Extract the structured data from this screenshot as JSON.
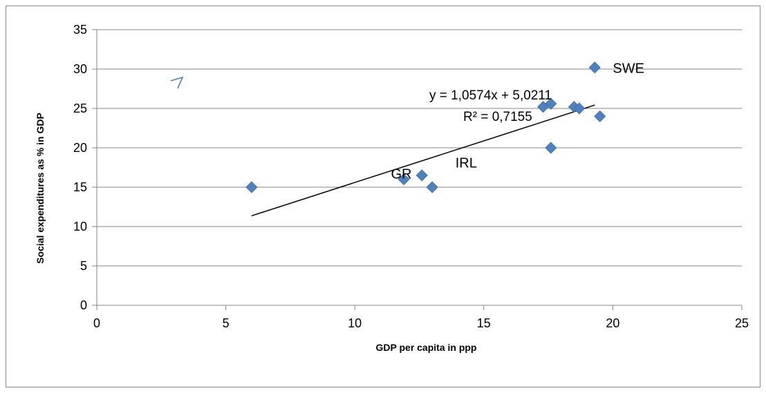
{
  "chart_data": {
    "type": "scatter",
    "title": "",
    "xlabel": "GDP per capita in ppp",
    "ylabel": "Social expenditures as % in GDP",
    "xlim": [
      0,
      25
    ],
    "ylim": [
      0,
      35
    ],
    "x_ticks": [
      0,
      5,
      10,
      15,
      20,
      25
    ],
    "y_ticks": [
      0,
      5,
      10,
      15,
      20,
      25,
      30,
      35
    ],
    "grid": "horizontal",
    "legend": "none",
    "marker": "diamond",
    "marker_color": "#4F81BD",
    "series": [
      {
        "points": [
          {
            "x": 6.0,
            "y": 15.0
          },
          {
            "x": 11.9,
            "y": 16.0
          },
          {
            "x": 12.6,
            "y": 16.5
          },
          {
            "x": 13.0,
            "y": 15.0
          },
          {
            "x": 17.3,
            "y": 25.2
          },
          {
            "x": 17.6,
            "y": 25.6
          },
          {
            "x": 17.6,
            "y": 20.0
          },
          {
            "x": 18.5,
            "y": 25.2
          },
          {
            "x": 18.7,
            "y": 25.0
          },
          {
            "x": 19.3,
            "y": 30.2
          },
          {
            "x": 19.5,
            "y": 24.0
          }
        ]
      }
    ],
    "trendline": {
      "slope": 1.0574,
      "intercept": 5.0211,
      "x_range": [
        6.0,
        19.3
      ],
      "equation": "y = 1,0574x + 5,0211",
      "r_squared": "R² = 0,7155"
    },
    "annotations": [
      {
        "text": "SWE",
        "x": 20.0,
        "y": 30.2
      },
      {
        "text": "GR",
        "x": 11.4,
        "y": 16.8
      },
      {
        "text": "IRL",
        "x": 13.9,
        "y": 18.2
      }
    ]
  }
}
